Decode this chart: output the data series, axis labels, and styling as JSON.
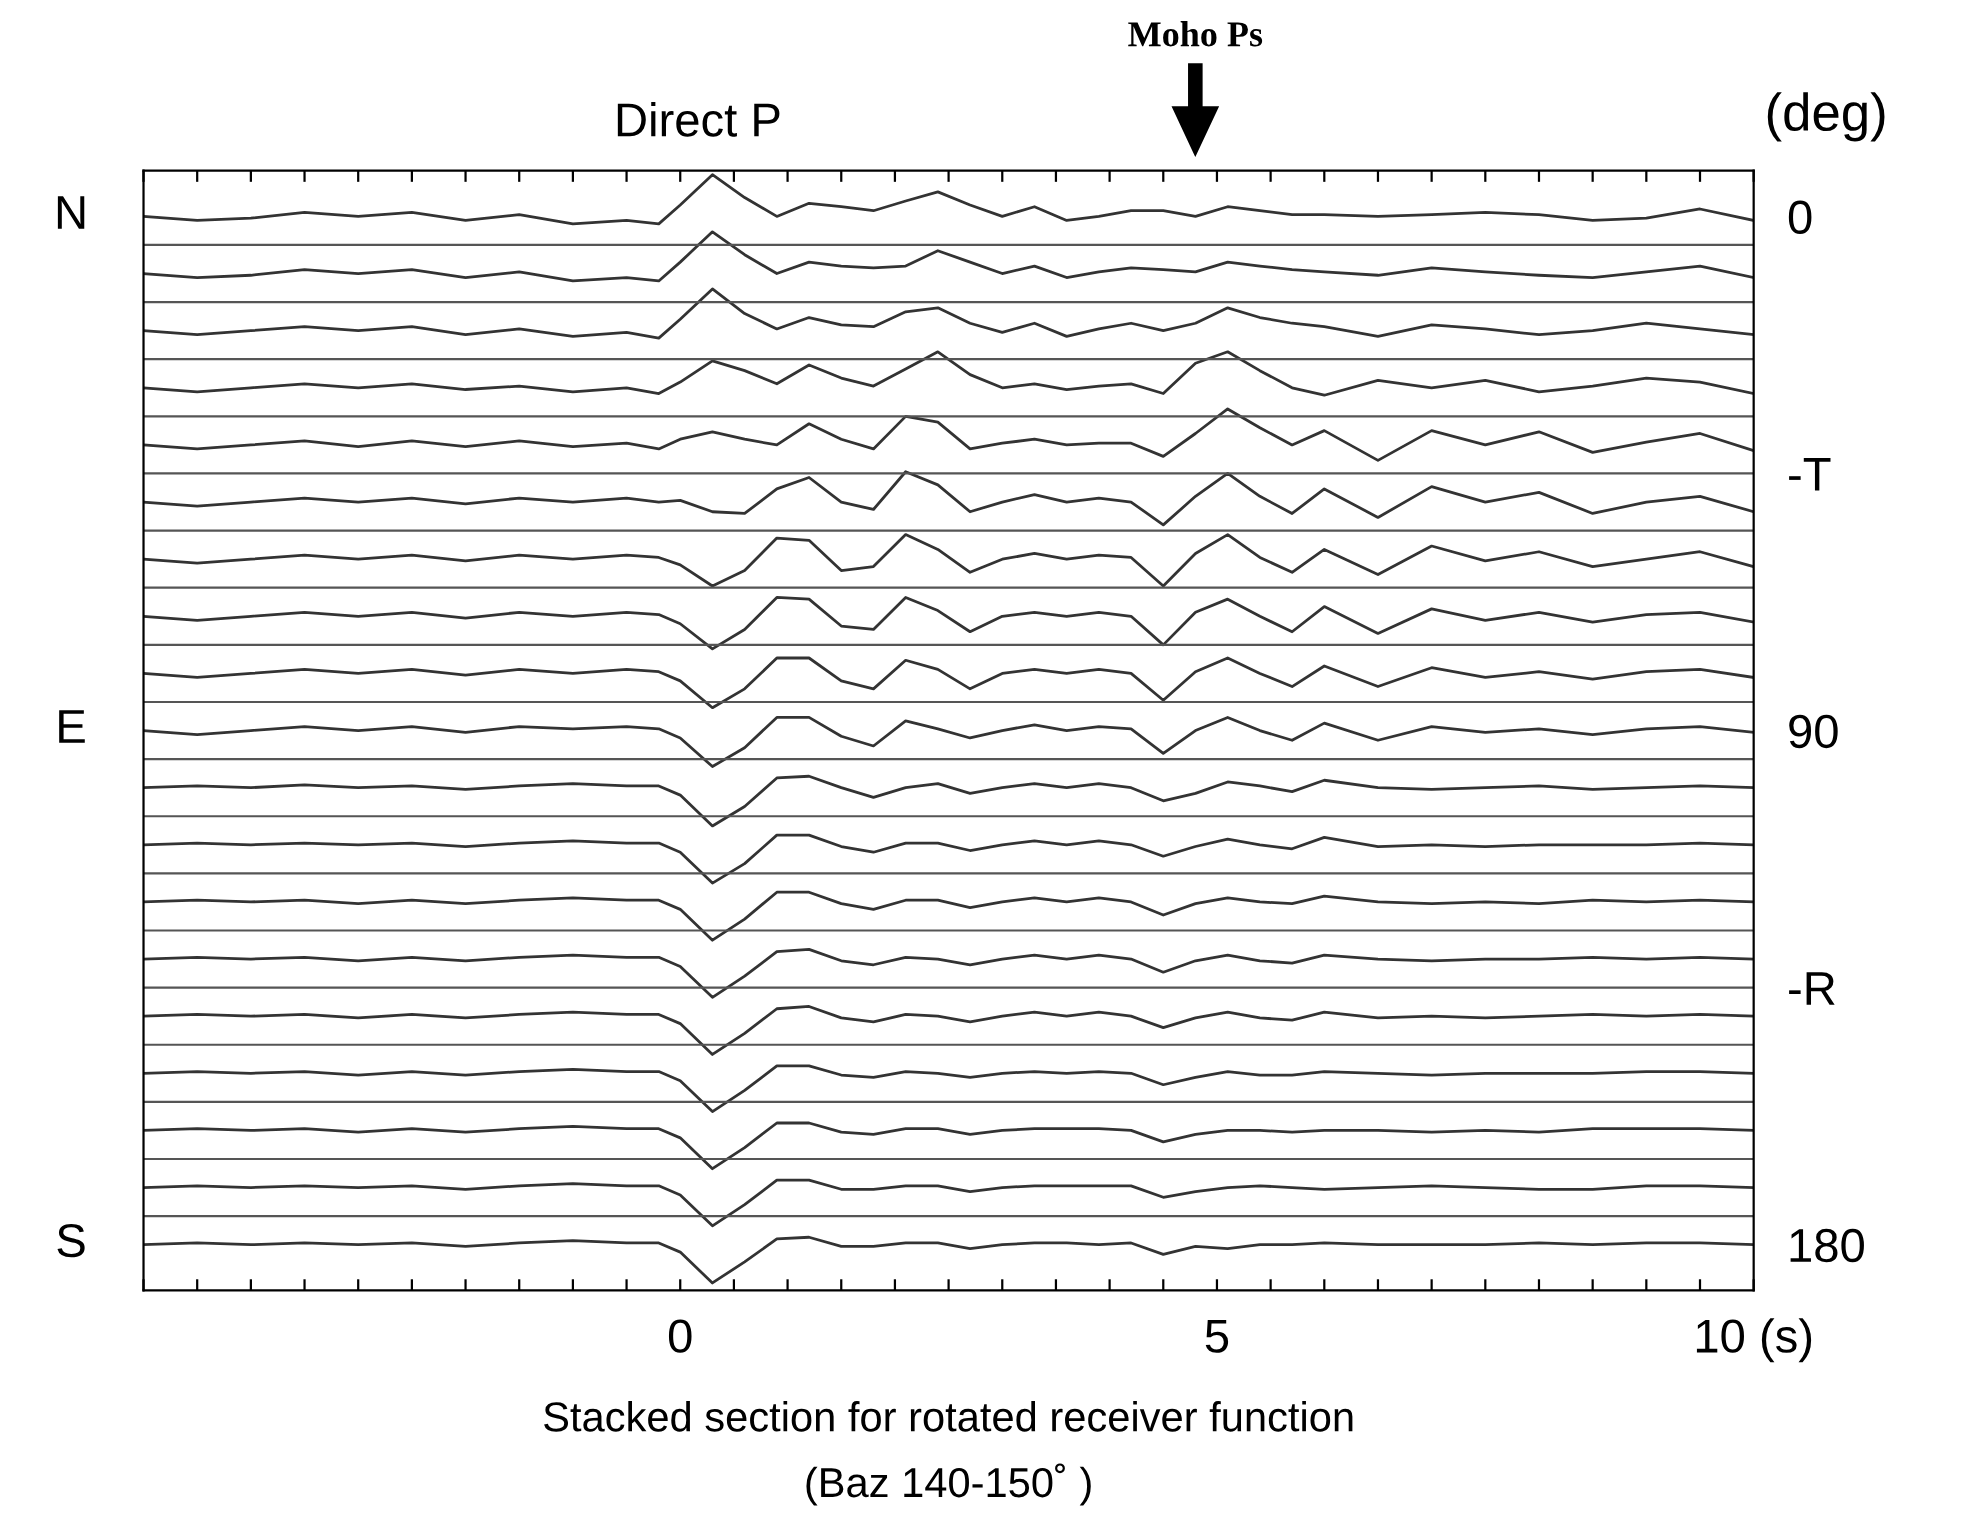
{
  "chart_data": {
    "type": "line",
    "xlabel": "Stacked section for rotated receiver function\n(Baz 140-150˚ )",
    "y2label": "(deg)",
    "annotations": [
      "Direct P",
      "Moho Ps",
      "N",
      "E",
      "S"
    ],
    "x": [
      -5,
      -4.5,
      -4,
      -3.5,
      -3,
      -2.5,
      -2,
      -1.5,
      -1,
      -0.5,
      -0.2,
      0,
      0.3,
      0.6,
      0.9,
      1.2,
      1.5,
      1.8,
      2.1,
      2.4,
      2.7,
      3,
      3.3,
      3.6,
      3.9,
      4.2,
      4.5,
      4.8,
      5.1,
      5.4,
      5.7,
      6,
      6.5,
      7,
      7.5,
      8,
      8.5,
      9,
      9.5,
      10
    ],
    "xlim": [
      -5,
      10
    ],
    "xticks": [
      {
        "value": -5,
        "label": null
      },
      {
        "value": -4.5,
        "label": null
      },
      {
        "value": -4,
        "label": null
      },
      {
        "value": -3.5,
        "label": null
      },
      {
        "value": -3,
        "label": null
      },
      {
        "value": -2.5,
        "label": null
      },
      {
        "value": -2,
        "label": null
      },
      {
        "value": -1.5,
        "label": null
      },
      {
        "value": -1,
        "label": null
      },
      {
        "value": -0.5,
        "label": null
      },
      0,
      {
        "value": 0.5,
        "label": null
      },
      {
        "value": 1,
        "label": null
      },
      {
        "value": 1.5,
        "label": null
      },
      {
        "value": 2,
        "label": null
      },
      {
        "value": 2.5,
        "label": null
      },
      {
        "value": 3,
        "label": null
      },
      {
        "value": 3.5,
        "label": null
      },
      {
        "value": 4,
        "label": null
      },
      {
        "value": 4.5,
        "label": null
      },
      5,
      {
        "value": 5.5,
        "label": null
      },
      {
        "value": 6,
        "label": null
      },
      {
        "value": 6.5,
        "label": null
      },
      {
        "value": 7,
        "label": null
      },
      {
        "value": 7.5,
        "label": null
      },
      {
        "value": 8,
        "label": null
      },
      {
        "value": 8.5,
        "label": null
      },
      {
        "value": 9,
        "label": null
      },
      {
        "value": 9.5,
        "label": null
      },
      {
        "value": 10,
        "label": "10 (s)"
      }
    ],
    "ylim": [
      188,
      -8
    ],
    "yticks": [
      0,
      {
        "value": 45,
        "label": "-T"
      },
      90,
      {
        "value": 135,
        "label": "-R"
      },
      180
    ],
    "grid": false,
    "legend": false,
    "marker": "none",
    "line_style": "solid",
    "ref_lines": [
      {
        "axis": "y",
        "value": 5,
        "color": "#555555"
      },
      {
        "axis": "y",
        "value": 15,
        "color": "#555555"
      },
      {
        "axis": "y",
        "value": 25,
        "color": "#555555"
      },
      {
        "axis": "y",
        "value": 35,
        "color": "#555555"
      },
      {
        "axis": "y",
        "value": 45,
        "color": "#555555"
      },
      {
        "axis": "y",
        "value": 55,
        "color": "#555555"
      },
      {
        "axis": "y",
        "value": 65,
        "color": "#555555"
      },
      {
        "axis": "y",
        "value": 75,
        "color": "#555555"
      },
      {
        "axis": "y",
        "value": 85,
        "color": "#555555"
      },
      {
        "axis": "y",
        "value": 95,
        "color": "#555555"
      },
      {
        "axis": "y",
        "value": 105,
        "color": "#555555"
      },
      {
        "axis": "y",
        "value": 115,
        "color": "#555555"
      },
      {
        "axis": "y",
        "value": 125,
        "color": "#555555"
      },
      {
        "axis": "y",
        "value": 135,
        "color": "#555555"
      },
      {
        "axis": "y",
        "value": 145,
        "color": "#555555"
      },
      {
        "axis": "y",
        "value": 155,
        "color": "#555555"
      },
      {
        "axis": "y",
        "value": 165,
        "color": "#555555"
      },
      {
        "axis": "y",
        "value": 175,
        "color": "#555555"
      }
    ],
    "series": [
      {
        "color": "#333333",
        "values": [
          0,
          0.7,
          0.3,
          -0.7,
          0,
          -0.7,
          0.7,
          -0.3,
          1.3,
          0.7,
          1.3,
          -2,
          -7.3,
          -3.3,
          0,
          -2.3,
          -1.7,
          -1,
          -2.7,
          -4.3,
          -2,
          0,
          -1.7,
          0.7,
          0,
          -1,
          -1,
          0,
          -1.7,
          -1,
          -0.3,
          -0.3,
          0,
          -0.3,
          -0.7,
          -0.3,
          0.7,
          0.3,
          -1.3,
          0.7
        ]
      },
      {
        "color": "#333333",
        "values": [
          10,
          10.7,
          10.3,
          9.3,
          10,
          9.3,
          10.7,
          9.7,
          11.3,
          10.7,
          11.3,
          8,
          2.7,
          6.7,
          10,
          8,
          8.7,
          9,
          8.7,
          6,
          8,
          10,
          8.7,
          10.7,
          9.7,
          9,
          9.3,
          9.7,
          8,
          8.7,
          9.3,
          9.7,
          10.3,
          9,
          9.7,
          10.3,
          10.7,
          9.7,
          8.7,
          10.7
        ]
      },
      {
        "color": "#333333",
        "values": [
          20,
          20.7,
          20,
          19.3,
          20,
          19.3,
          20.7,
          19.7,
          21,
          20.3,
          21.3,
          18,
          12.7,
          17,
          19.7,
          17.7,
          19,
          19.3,
          16.7,
          16,
          18.7,
          20.3,
          18.7,
          21,
          19.7,
          18.7,
          20,
          18.7,
          16,
          17.7,
          18.7,
          19.3,
          21,
          19,
          19.7,
          20.7,
          20,
          18.7,
          19.7,
          20.7
        ]
      },
      {
        "color": "#333333",
        "values": [
          30,
          30.7,
          30,
          29.3,
          30,
          29.3,
          30.3,
          29.7,
          30.7,
          30,
          31,
          29,
          25.3,
          27,
          29.3,
          26,
          28.3,
          29.7,
          26.7,
          23.7,
          27.7,
          30,
          29.3,
          30.3,
          29.7,
          29.3,
          31,
          25.7,
          23.7,
          27,
          30,
          31.3,
          28.7,
          30,
          28.7,
          30.7,
          29.7,
          28.3,
          29,
          31
        ]
      },
      {
        "color": "#333333",
        "values": [
          40,
          40.7,
          40,
          39.3,
          40.3,
          39.3,
          40.3,
          39.3,
          40.3,
          39.7,
          40.7,
          39,
          37.7,
          39,
          40,
          36.3,
          39,
          40.7,
          35,
          36,
          40.7,
          39.7,
          39,
          40,
          39.7,
          39.7,
          42,
          38,
          33.7,
          37,
          40,
          37.5,
          42.7,
          37.5,
          40,
          37.7,
          41.3,
          39.5,
          38,
          41
        ]
      },
      {
        "color": "#333333",
        "values": [
          50,
          50.7,
          50,
          49.3,
          50,
          49.3,
          50.3,
          49.3,
          50,
          49.3,
          50,
          49.7,
          51.7,
          52,
          47.7,
          45.7,
          50,
          51.3,
          44.7,
          47,
          51.7,
          50,
          48.7,
          50,
          49.3,
          50,
          54,
          49,
          45,
          49,
          52,
          47.7,
          52.7,
          47.3,
          50,
          48.3,
          52,
          50,
          49,
          51.7
        ]
      },
      {
        "color": "#333333",
        "values": [
          60,
          60.7,
          60,
          59.3,
          60,
          59.3,
          60.3,
          59.3,
          60,
          59.3,
          59.7,
          61,
          64.7,
          62,
          56.3,
          56.7,
          62,
          61.3,
          55.7,
          58.3,
          62.3,
          60,
          59,
          60,
          59.3,
          59.7,
          64.7,
          59,
          55.7,
          59.7,
          62.3,
          58.3,
          62.7,
          57.7,
          60.3,
          58.7,
          61.3,
          60,
          58.7,
          61.3
        ]
      },
      {
        "color": "#333333",
        "values": [
          70,
          70.7,
          70,
          69.3,
          70,
          69.3,
          70.3,
          69.3,
          70,
          69.3,
          69.7,
          71.3,
          75.7,
          72.3,
          66.7,
          67,
          71.7,
          72.3,
          66.7,
          69,
          72.7,
          70,
          69.3,
          70,
          69.3,
          70,
          75,
          69.3,
          67,
          70,
          72.7,
          68.3,
          73,
          68.7,
          70.7,
          69.3,
          71,
          69.7,
          69.3,
          71
        ]
      },
      {
        "color": "#333333",
        "values": [
          80,
          80.7,
          80,
          79.3,
          80,
          79.3,
          80.3,
          79.3,
          80,
          79.3,
          79.7,
          81.3,
          86,
          82.7,
          77.3,
          77.3,
          81.3,
          82.7,
          77.7,
          79.3,
          82.7,
          80,
          79.3,
          80,
          79.3,
          80,
          84.7,
          79.7,
          77.3,
          80,
          82.3,
          78.7,
          82.3,
          79,
          80.7,
          79.7,
          81,
          79.7,
          79.3,
          80.7
        ]
      },
      {
        "color": "#333333",
        "values": [
          90,
          90.7,
          90,
          89.3,
          90,
          89.3,
          90.3,
          89.3,
          89.7,
          89.3,
          89.7,
          91.3,
          96.3,
          93,
          87.7,
          87.7,
          91,
          92.7,
          88.3,
          89.7,
          91.3,
          90,
          89,
          90,
          89.3,
          89.7,
          94,
          90,
          87.7,
          90,
          91.7,
          88.7,
          91.7,
          89.3,
          90.3,
          89.7,
          90.7,
          89.7,
          89.3,
          90.3
        ]
      },
      {
        "color": "#333333",
        "values": [
          100,
          99.7,
          100,
          99.5,
          100,
          99.7,
          100.3,
          99.7,
          99.3,
          99.7,
          99.7,
          101.3,
          106.7,
          103.3,
          98.3,
          98,
          100,
          101.7,
          100,
          99.3,
          101,
          100,
          99.3,
          100,
          99.3,
          100,
          102.3,
          101,
          99,
          99.7,
          100.7,
          98.7,
          100,
          100.3,
          100,
          99.7,
          100.3,
          100,
          99.7,
          100
        ]
      },
      {
        "color": "#333333",
        "values": [
          110,
          109.7,
          110,
          109.7,
          110,
          109.7,
          110.3,
          109.7,
          109.3,
          109.7,
          109.7,
          111.3,
          116.7,
          113.3,
          108.3,
          108.3,
          110.3,
          111.3,
          109.7,
          109.7,
          111,
          110,
          109.3,
          110,
          109.3,
          110,
          112,
          110.3,
          109,
          110,
          110.7,
          108.7,
          110.3,
          110,
          110.3,
          110,
          110,
          110,
          109.7,
          110
        ]
      },
      {
        "color": "#333333",
        "values": [
          120,
          119.7,
          120,
          119.7,
          120.3,
          119.7,
          120.3,
          119.7,
          119.3,
          119.7,
          119.7,
          121.3,
          126.7,
          123,
          118.3,
          118.3,
          120.3,
          121.3,
          119.7,
          119.7,
          121,
          120,
          119.3,
          120,
          119.3,
          120,
          122.3,
          120.3,
          119.3,
          120,
          120.3,
          119,
          120,
          120.3,
          120,
          120.3,
          119.7,
          120,
          119.7,
          120
        ]
      },
      {
        "color": "#333333",
        "values": [
          130,
          129.7,
          130,
          129.7,
          130.3,
          129.7,
          130.3,
          129.7,
          129.3,
          129.7,
          129.7,
          131.3,
          136.7,
          133,
          128.7,
          128.3,
          130.3,
          131,
          129.7,
          130,
          131,
          130,
          129.3,
          130,
          129.3,
          130,
          132.3,
          130.3,
          129.3,
          130.3,
          130.7,
          129.3,
          130,
          130.3,
          130,
          130,
          129.7,
          130,
          129.7,
          130
        ]
      },
      {
        "color": "#333333",
        "values": [
          140,
          139.7,
          140,
          139.7,
          140.3,
          139.7,
          140.3,
          139.7,
          139.3,
          139.7,
          139.7,
          141.3,
          146.7,
          143,
          138.7,
          138.3,
          140.3,
          141,
          139.7,
          140,
          141,
          140,
          139.3,
          140,
          139.3,
          140,
          142,
          140.3,
          139.3,
          140.3,
          140.7,
          139.3,
          140.3,
          140,
          140.3,
          140,
          139.7,
          140,
          139.7,
          140
        ]
      },
      {
        "color": "#333333",
        "values": [
          150,
          149.7,
          150,
          149.7,
          150.3,
          149.7,
          150.3,
          149.7,
          149.3,
          149.7,
          149.7,
          151.3,
          156.7,
          153,
          148.7,
          148.7,
          150.3,
          150.7,
          149.7,
          150,
          150.7,
          150,
          149.7,
          150,
          149.7,
          150,
          152,
          150.7,
          149.7,
          150.3,
          150.3,
          149.7,
          150,
          150.3,
          150,
          150,
          150,
          149.7,
          149.7,
          150
        ]
      },
      {
        "color": "#333333",
        "values": [
          160,
          159.7,
          160,
          159.7,
          160.3,
          159.7,
          160.3,
          159.7,
          159.3,
          159.7,
          159.7,
          161.3,
          166.7,
          163,
          158.7,
          158.7,
          160.3,
          160.7,
          159.7,
          159.7,
          160.7,
          160,
          159.7,
          159.7,
          159.7,
          160,
          162,
          160.7,
          160,
          160,
          160.3,
          160,
          160,
          160.3,
          160,
          160.3,
          159.7,
          159.7,
          159.7,
          160
        ]
      },
      {
        "color": "#333333",
        "values": [
          170,
          169.7,
          170,
          169.7,
          170,
          169.7,
          170.3,
          169.7,
          169.3,
          169.7,
          169.7,
          171.3,
          176.7,
          173,
          168.7,
          168.7,
          170.3,
          170.3,
          169.7,
          169.7,
          170.7,
          170,
          169.7,
          169.7,
          169.7,
          169.7,
          171.7,
          170.7,
          170,
          169.7,
          170,
          170.3,
          170,
          169.7,
          170,
          170.3,
          170.3,
          169.7,
          169.7,
          170
        ]
      },
      {
        "color": "#333333",
        "values": [
          180,
          179.7,
          180,
          179.7,
          180,
          179.7,
          180.3,
          179.7,
          179.3,
          179.7,
          179.7,
          181.3,
          186.7,
          183,
          179,
          178.7,
          180.3,
          180.3,
          179.7,
          179.7,
          180.7,
          180,
          179.7,
          179.7,
          180,
          179.7,
          181.7,
          180.3,
          180.7,
          180,
          180,
          179.7,
          180,
          180,
          180,
          179.7,
          180,
          179.7,
          179.7,
          180
        ]
      }
    ]
  }
}
